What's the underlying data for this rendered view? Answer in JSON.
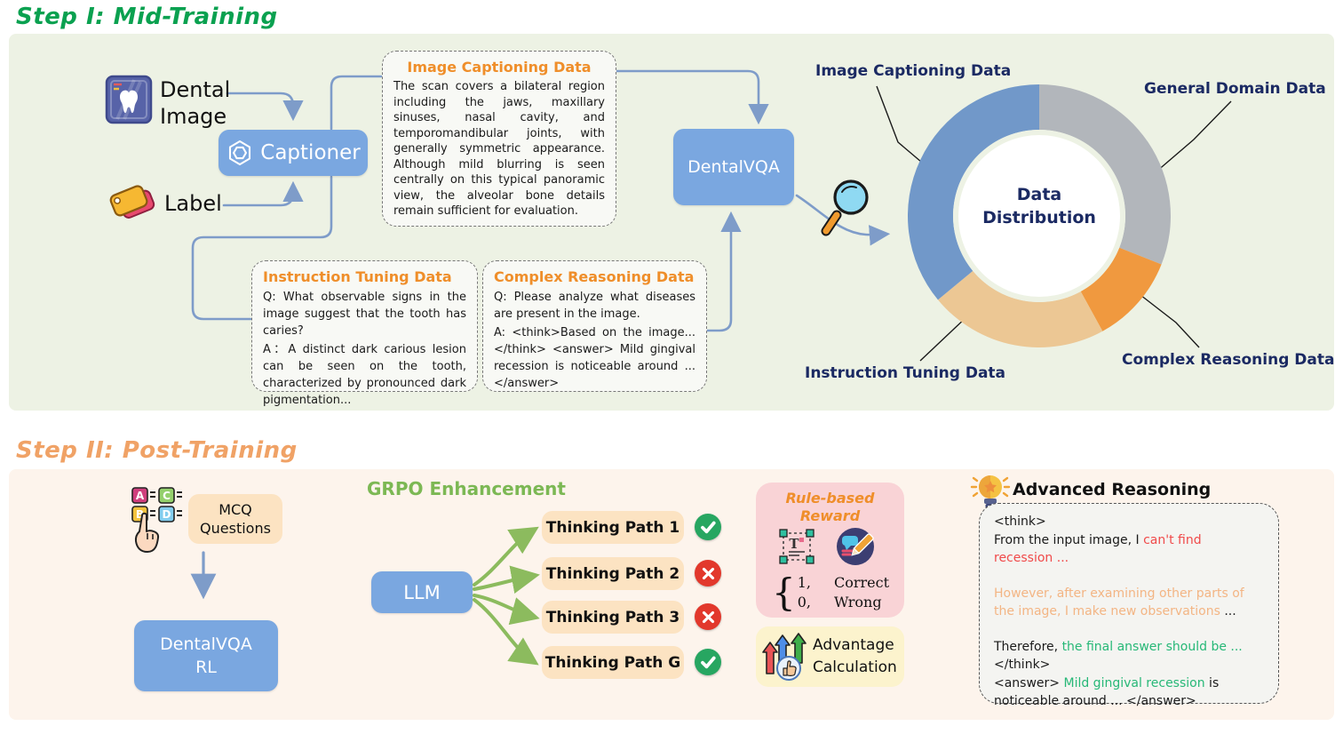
{
  "step1": {
    "title": "Step I: Mid-Training",
    "dental_image_label": "Dental Image",
    "label_label": "Label",
    "captioner_label": "Captioner",
    "dentalvqa_label": "DentalVQA",
    "boxes": {
      "image_captioning": {
        "title": "Image Captioning Data",
        "body": "The scan covers a bilateral region including the jaws, maxillary sinuses, nasal cavity, and temporomandibular joints, with generally symmetric appearance. Although mild blurring is seen centrally on this typical panoramic view, the alveolar bone details remain sufficient for evaluation."
      },
      "instruction_tuning": {
        "title": "Instruction Tuning Data",
        "q": "Q: What observable signs in the image suggest that the tooth has caries?",
        "a": "A：A distinct dark carious lesion can be seen on the tooth, characterized by pronounced dark pigmentation..."
      },
      "complex_reasoning": {
        "title": "Complex Reasoning Data",
        "q": "Q: Please analyze what diseases are present in the image.",
        "a": "A: <think>Based on the image...</think> <answer> Mild gingival recession is noticeable around ... </answer>"
      }
    }
  },
  "chart_data": {
    "type": "pie",
    "subtype": "donut",
    "center_label": "Data Distribution",
    "direction": "clockwise",
    "start_angle_deg": 0,
    "slices": [
      {
        "label": "General Domain Data",
        "value": 31,
        "color": "#b2b6bb"
      },
      {
        "label": "Complex Reasoning Data",
        "value": 11,
        "color": "#f0993f"
      },
      {
        "label": "Instruction Tuning Data",
        "value": 22,
        "color": "#ecc794"
      },
      {
        "label": "Image Captioning Data",
        "value": 36,
        "color": "#7198c9"
      }
    ]
  },
  "step2": {
    "title": "Step II: Post-Training",
    "mcq_label": "MCQ Questions",
    "dentalvqa_rl_label": "DentalVQA RL",
    "grpo_label": "GRPO Enhancement",
    "llm_label": "LLM",
    "thinking_paths": [
      {
        "label": "Thinking Path 1",
        "result": "correct"
      },
      {
        "label": "Thinking Path 2",
        "result": "wrong"
      },
      {
        "label": "Thinking Path 3",
        "result": "wrong"
      },
      {
        "label": "Thinking Path G",
        "result": "correct"
      }
    ],
    "rule_based_reward": {
      "title": "Rule-based Reward",
      "case_values": [
        "1,",
        "0,"
      ],
      "case_labels": [
        "Correct",
        "Wrong"
      ]
    },
    "advantage_label": "Advantage Calculation",
    "advanced_reasoning": {
      "title": "Advanced Reasoning",
      "l1": "<think>",
      "l2a": "From the input image, I ",
      "l2b": "can't find recession ...",
      "l3a": "However, after examining other parts of the image, I make new observations ",
      "l3b": "...",
      "l4a": "Therefore, ",
      "l4b": "the final answer should be ...",
      "l5": "</think>",
      "l6a": "<answer> ",
      "l6b": "Mild gingival recession",
      "l6c": " is noticeable around ... ",
      "l6d": "</answer>"
    }
  }
}
